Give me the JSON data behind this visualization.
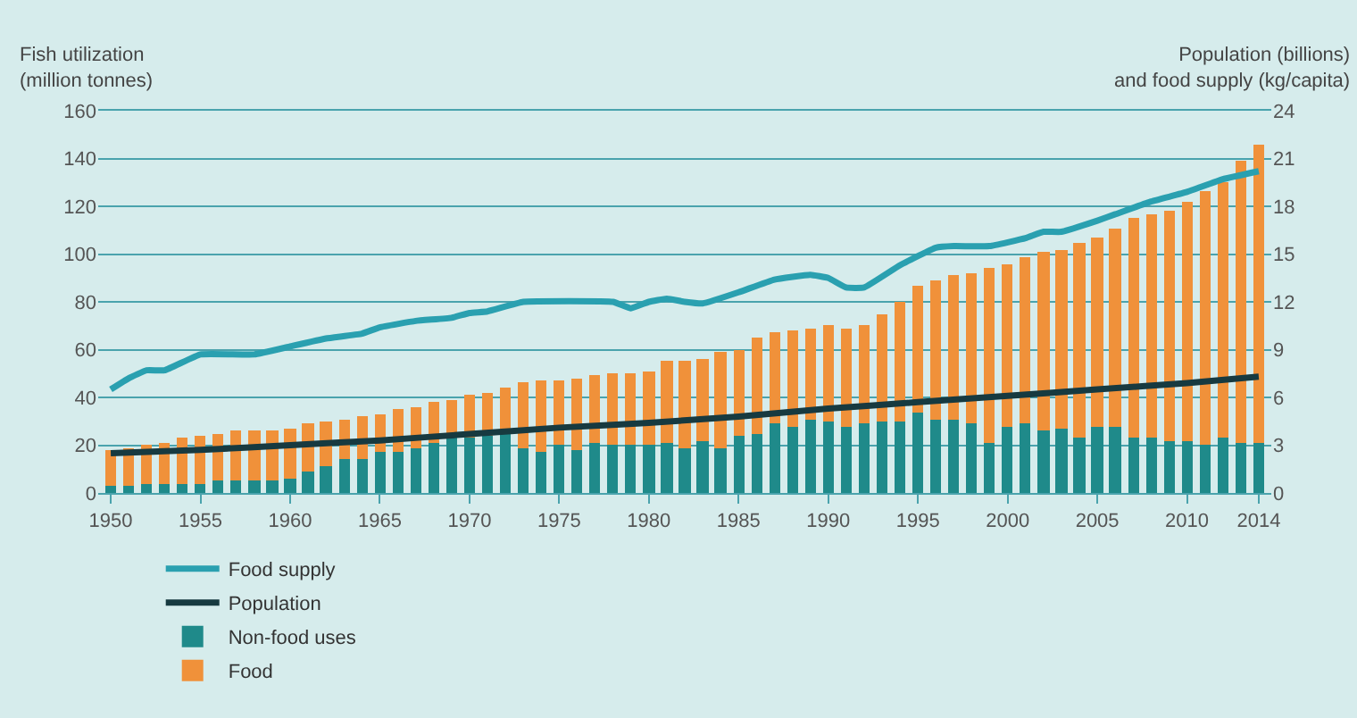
{
  "chart_data": {
    "type": "bar",
    "ylabel": "Fish utilization\n(million tonnes)",
    "y2label": "Population (billions)\nand food supply (kg/capita)",
    "x": [
      1950,
      1951,
      1952,
      1953,
      1954,
      1955,
      1956,
      1957,
      1958,
      1959,
      1960,
      1961,
      1962,
      1963,
      1964,
      1965,
      1966,
      1967,
      1968,
      1969,
      1970,
      1971,
      1972,
      1973,
      1974,
      1975,
      1976,
      1977,
      1978,
      1979,
      1980,
      1981,
      1982,
      1983,
      1984,
      1985,
      1986,
      1987,
      1988,
      1989,
      1990,
      1991,
      1992,
      1993,
      1994,
      1995,
      1996,
      1997,
      1998,
      1999,
      2000,
      2001,
      2002,
      2003,
      2004,
      2005,
      2006,
      2007,
      2008,
      2009,
      2010,
      2011,
      2012,
      2013,
      2014
    ],
    "series": [
      {
        "name": "Non-food uses",
        "color": "#1f8a8a",
        "values": [
          3,
          3,
          4,
          4,
          4,
          4,
          5,
          5,
          5,
          5,
          6,
          9,
          11,
          14,
          14,
          17,
          17,
          19,
          21,
          23,
          23,
          24,
          26,
          19,
          17,
          20,
          18,
          21,
          20,
          20,
          20,
          21,
          19,
          22,
          19,
          24,
          25,
          29,
          28,
          31,
          30,
          28,
          29,
          30,
          30,
          34,
          31,
          31,
          29,
          21,
          28,
          29,
          26,
          27,
          23,
          28,
          28,
          23,
          23,
          22,
          22,
          20,
          23,
          21,
          21
        ]
      },
      {
        "name": "Food",
        "color": "#f0913a",
        "values": [
          15,
          16,
          16,
          17,
          19,
          20,
          20,
          21,
          21,
          21,
          21,
          20,
          19,
          17,
          18,
          16,
          18,
          17,
          17,
          16,
          18,
          18,
          18,
          27,
          30,
          27,
          30,
          28,
          30,
          30,
          31,
          34,
          36,
          34,
          40,
          36,
          40,
          38,
          40,
          38,
          40,
          41,
          41,
          45,
          50,
          53,
          58,
          60,
          63,
          73,
          68,
          70,
          75,
          75,
          82,
          79,
          83,
          92,
          94,
          96,
          100,
          106,
          107,
          118,
          125
        ]
      },
      {
        "name": "Population",
        "type": "line",
        "axis": "y2",
        "color": "#173a40",
        "x": [
          1950,
          1955,
          1960,
          1965,
          1970,
          1975,
          1980,
          1985,
          1990,
          1995,
          2000,
          2005,
          2010,
          2014
        ],
        "values": [
          2.5,
          2.7,
          3.0,
          3.3,
          3.7,
          4.1,
          4.4,
          4.8,
          5.3,
          5.7,
          6.1,
          6.5,
          6.9,
          7.3
        ]
      },
      {
        "name": "Food supply",
        "type": "line",
        "axis": "y2",
        "color": "#2aa0b0",
        "x": [
          1950,
          1951,
          1952,
          1953,
          1955,
          1958,
          1960,
          1962,
          1964,
          1965,
          1967,
          1969,
          1970,
          1971,
          1973,
          1978,
          1979,
          1980,
          1981,
          1982,
          1983,
          1985,
          1987,
          1989,
          1990,
          1991,
          1992,
          1994,
          1996,
          1997,
          1999,
          2001,
          2002,
          2003,
          2005,
          2006,
          2008,
          2010,
          2012,
          2014
        ],
        "values": [
          6.5,
          7.2,
          7.7,
          7.7,
          8.7,
          8.7,
          9.2,
          9.7,
          10.0,
          10.4,
          10.8,
          11.0,
          11.3,
          11.4,
          12.0,
          12.0,
          11.6,
          12.0,
          12.2,
          12.0,
          11.9,
          12.6,
          13.4,
          13.7,
          13.5,
          12.9,
          12.9,
          14.3,
          15.4,
          15.5,
          15.5,
          16.0,
          16.4,
          16.4,
          17.1,
          17.5,
          18.3,
          18.9,
          19.7,
          20.2
        ]
      }
    ],
    "xlim": [
      1949.3,
      2014.7
    ],
    "xticks": [
      1950,
      1955,
      1960,
      1965,
      1970,
      1975,
      1980,
      1985,
      1990,
      1995,
      2000,
      2005,
      2010,
      2014
    ],
    "ylim": [
      0,
      160
    ],
    "yticks": [
      0,
      20,
      40,
      60,
      80,
      100,
      120,
      140,
      160
    ],
    "y2lim": [
      0,
      24
    ],
    "y2ticks": [
      0,
      3,
      6,
      9,
      12,
      15,
      18,
      21,
      24
    ],
    "stacked": true,
    "grid": "y",
    "legend": "bottom"
  }
}
